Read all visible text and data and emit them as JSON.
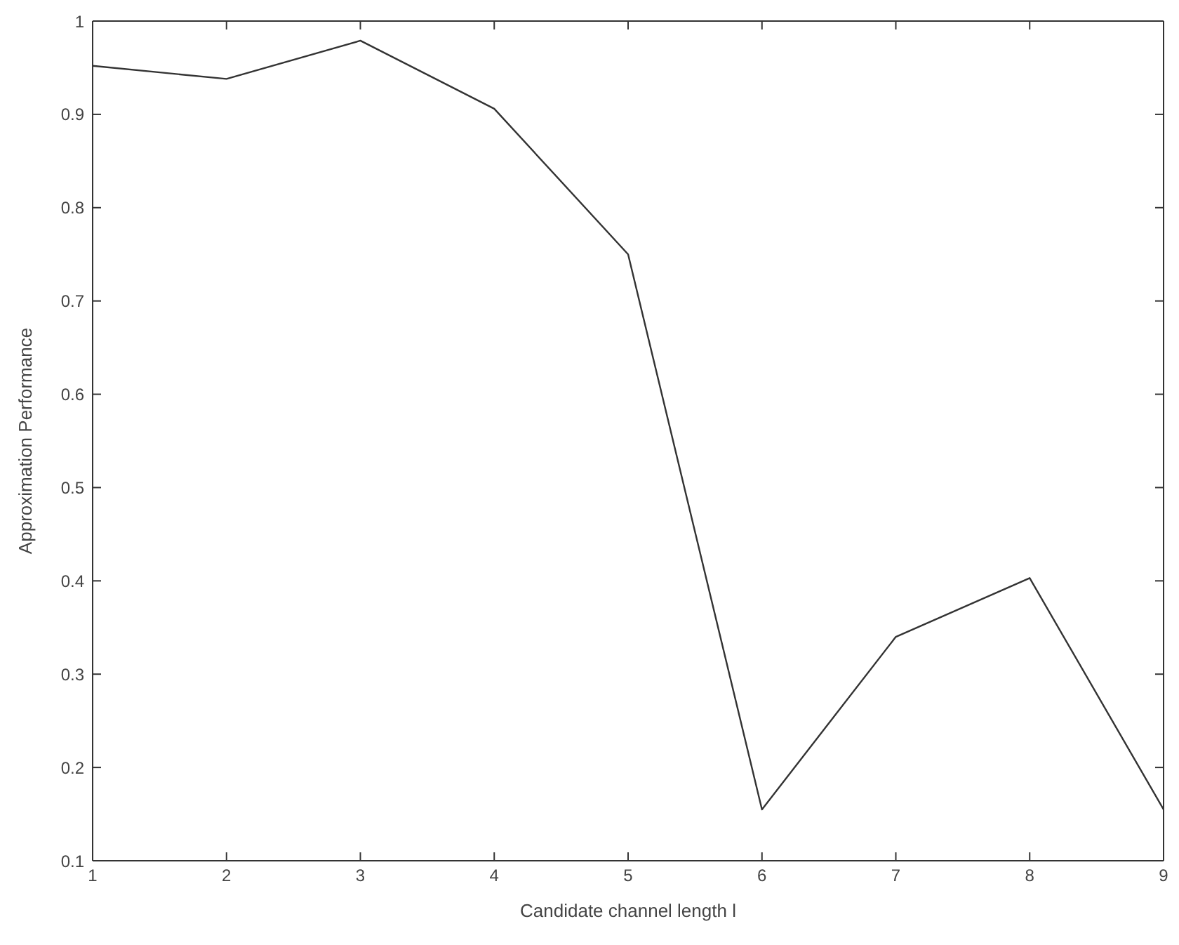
{
  "chart_data": {
    "type": "line",
    "xlabel": "Candidate channel length l",
    "ylabel": "Approximation Performance",
    "x": [
      1,
      2,
      3,
      4,
      5,
      6,
      7,
      8,
      9
    ],
    "series": [
      {
        "color": "#333333",
        "values": [
          0.952,
          0.938,
          0.979,
          0.906,
          0.75,
          0.155,
          0.34,
          0.403,
          0.155
        ]
      }
    ],
    "xlim": [
      1,
      9
    ],
    "xticks": [
      1,
      2,
      3,
      4,
      5,
      6,
      7,
      8,
      9
    ],
    "ylim": [
      0.1,
      1
    ],
    "yticks": [
      0.1,
      0.2,
      0.3,
      0.4,
      0.5,
      0.6,
      0.7,
      0.8,
      0.9,
      1
    ],
    "grid": false,
    "marker": "none",
    "line_style": "solid"
  }
}
